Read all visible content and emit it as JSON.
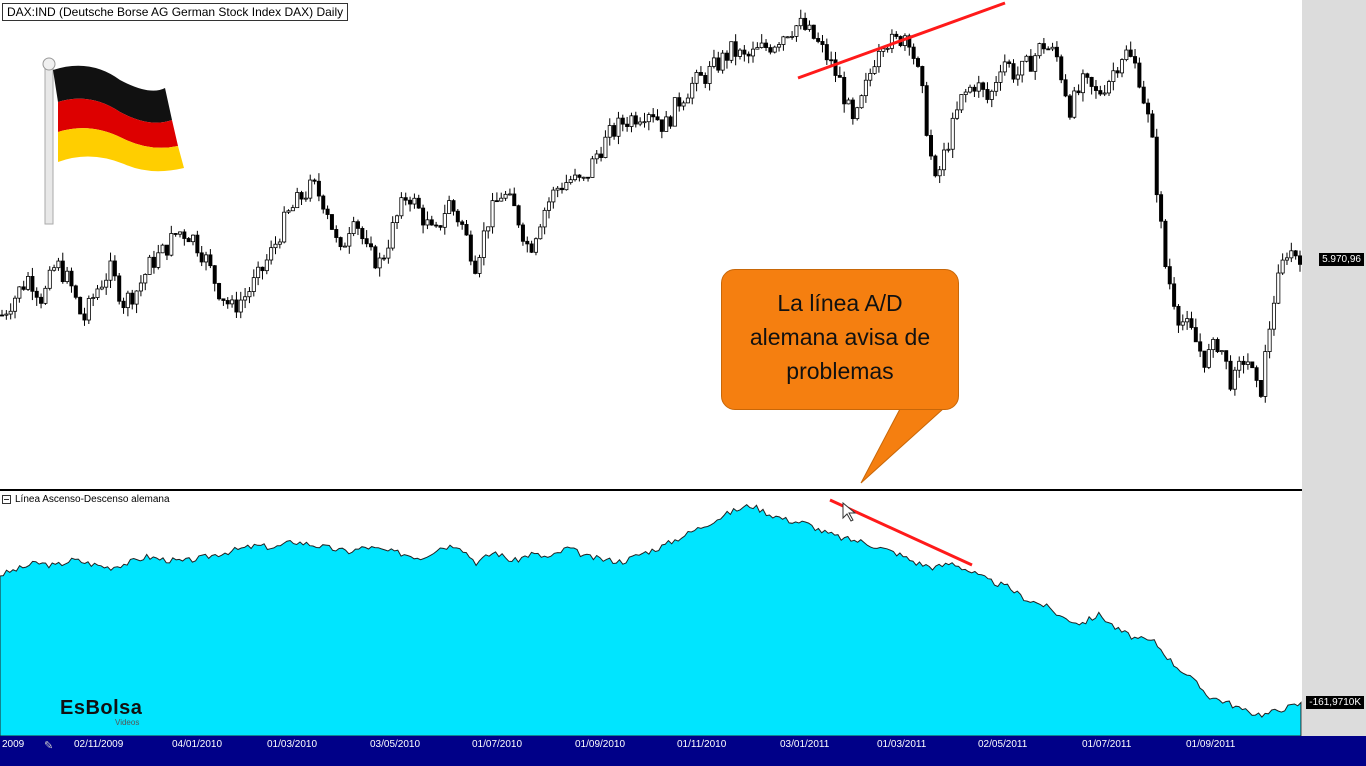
{
  "chart_data": [
    {
      "type": "candlestick",
      "title": "DAX:IND (Deutsche Borse AG German Stock Index DAX) Daily",
      "last_value_label": "5.970,96",
      "series": [
        {
          "values": [
            5500,
            5650,
            5800,
            5620,
            5900,
            5750,
            5450,
            5700,
            5850,
            5600,
            5700,
            5900,
            6000,
            6150,
            6120,
            5950,
            5700,
            5550,
            5650,
            5800,
            6000,
            6250,
            6400,
            6500,
            6350,
            5950,
            6300,
            5980,
            5900,
            6200,
            6450,
            6280,
            6100,
            6380,
            6200,
            5900,
            6250,
            6450,
            6300,
            6000,
            6300,
            6480,
            6550,
            6520,
            6750,
            6900,
            7000,
            7050,
            7100,
            6950,
            7150,
            7280,
            7350,
            7450,
            7550,
            7480,
            7550,
            7600,
            7700,
            7750,
            7650,
            7500,
            7300,
            6950,
            7300,
            7650,
            7600,
            7700,
            7250,
            6500,
            6850,
            7180,
            7300,
            7150,
            7500,
            7350,
            7450,
            7600,
            7500,
            7100,
            7300,
            7200,
            7350,
            7550,
            7400,
            6900,
            5900,
            5500,
            5350,
            5150,
            5300,
            4950,
            5200,
            4850,
            5600,
            6000,
            5970
          ]
        }
      ]
    },
    {
      "type": "area",
      "title": "Línea Ascenso-Descenso alemana",
      "last_value_label": "-161,9710K",
      "series": [
        {
          "values": [
            50,
            60,
            70,
            65,
            75,
            68,
            62,
            70,
            80,
            75,
            72,
            78,
            85,
            92,
            98,
            95,
            105,
            100,
            94,
            88,
            96,
            90,
            85,
            78,
            95,
            100,
            70,
            88,
            72,
            85,
            78,
            95,
            80,
            75,
            72,
            85,
            95,
            110,
            125,
            140,
            155,
            165,
            150,
            140,
            135,
            120,
            110,
            105,
            95,
            85,
            70,
            62,
            70,
            55,
            40,
            30,
            10,
            0,
            -20,
            -30,
            -15,
            -40,
            -55,
            -60,
            -95,
            -120,
            -150,
            -160,
            -175,
            -180,
            -170,
            -162
          ]
        }
      ]
    }
  ],
  "annotation": {
    "text": "La línea A/D alemana avisa de problemas"
  },
  "x_axis": {
    "ticks": [
      "2009",
      "02/11/2009",
      "04/01/2010",
      "01/03/2010",
      "03/05/2010",
      "01/07/2010",
      "01/09/2010",
      "01/11/2010",
      "03/01/2011",
      "01/03/2011",
      "02/05/2011",
      "01/07/2011",
      "01/09/2011"
    ]
  },
  "logo": {
    "name": "EsBolsa",
    "sub": "Videos"
  },
  "colors": {
    "area_fill": "#00e5ff",
    "trendline": "#ff1a1a",
    "callout": "#f57f10",
    "axis_bar": "#000088"
  }
}
